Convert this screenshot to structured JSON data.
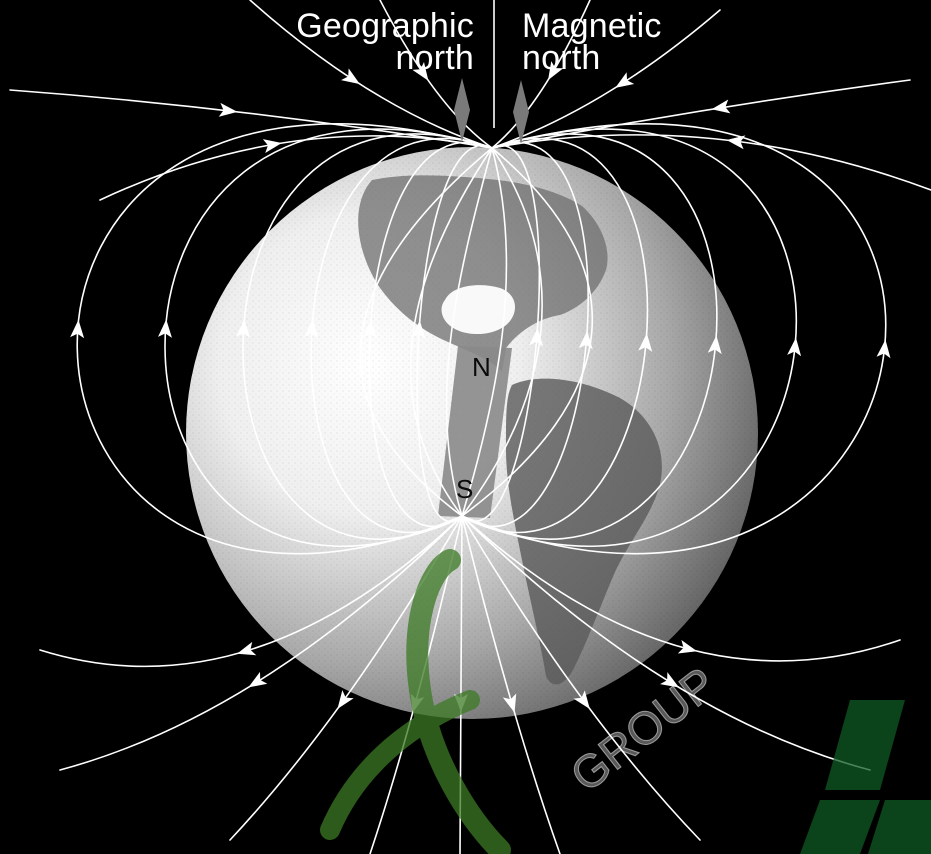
{
  "labels": {
    "geographic_line1": "Geographic",
    "geographic_line2": "north",
    "magnetic_line1": "Magnetic",
    "magnetic_line2": "north"
  },
  "magnet": {
    "north": "N",
    "south": "S"
  },
  "watermark": {
    "text": "GROUP"
  },
  "colors": {
    "background": "#000000",
    "field_lines": "#ffffff",
    "magnet": "#8a8a8a",
    "watermark": "#3c7a24"
  },
  "icons": [
    "arrowhead-icon",
    "pointer-icon"
  ]
}
